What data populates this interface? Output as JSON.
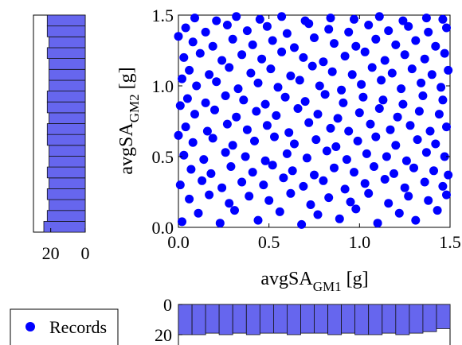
{
  "colors": {
    "points": "#0000ff",
    "bars": "#6666ee",
    "bar_edge": "#111111",
    "axes": "#000000",
    "background": "#ffffff"
  },
  "legend": {
    "label": "Records",
    "marker_icon": "filled-circle"
  },
  "chart_data": [
    {
      "type": "scatter",
      "xlabel": "avgSA",
      "xlabel_sub": "GM1",
      "xlabel_unit": "[g]",
      "ylabel": "avgSA",
      "ylabel_sub": "GM2",
      "ylabel_unit": "[g]",
      "xlim": [
        0,
        1.5
      ],
      "ylim": [
        0,
        1.5
      ],
      "xticks": [
        "0.0",
        "0.5",
        "1.0",
        "1.5"
      ],
      "yticks": [
        "0.0",
        "0.5",
        "1.0",
        "1.5"
      ],
      "grid": false,
      "legend": "bottom-left",
      "series": [
        {
          "name": "Records",
          "points": [
            [
              0.02,
              0.04
            ],
            [
              0.11,
              0.1
            ],
            [
              0.23,
              0.03
            ],
            [
              0.31,
              0.12
            ],
            [
              0.44,
              0.05
            ],
            [
              0.56,
              0.11
            ],
            [
              0.68,
              0.02
            ],
            [
              0.77,
              0.09
            ],
            [
              0.89,
              0.06
            ],
            [
              0.98,
              0.13
            ],
            [
              1.1,
              0.03
            ],
            [
              1.22,
              0.1
            ],
            [
              1.31,
              0.05
            ],
            [
              1.43,
              0.12
            ],
            [
              0.06,
              0.2
            ],
            [
              0.17,
              0.23
            ],
            [
              0.28,
              0.17
            ],
            [
              0.39,
              0.22
            ],
            [
              0.5,
              0.19
            ],
            [
              0.62,
              0.24
            ],
            [
              0.73,
              0.16
            ],
            [
              0.83,
              0.21
            ],
            [
              0.95,
              0.18
            ],
            [
              1.05,
              0.24
            ],
            [
              1.16,
              0.17
            ],
            [
              1.27,
              0.22
            ],
            [
              1.38,
              0.19
            ],
            [
              1.48,
              0.23
            ],
            [
              0.01,
              0.3
            ],
            [
              0.13,
              0.33
            ],
            [
              0.24,
              0.28
            ],
            [
              0.35,
              0.32
            ],
            [
              0.47,
              0.3
            ],
            [
              0.58,
              0.35
            ],
            [
              0.69,
              0.29
            ],
            [
              0.8,
              0.33
            ],
            [
              0.92,
              0.27
            ],
            [
              1.03,
              0.31
            ],
            [
              1.14,
              0.34
            ],
            [
              1.25,
              0.28
            ],
            [
              1.36,
              0.32
            ],
            [
              1.46,
              0.29
            ],
            [
              0.07,
              0.41
            ],
            [
              0.18,
              0.38
            ],
            [
              0.29,
              0.43
            ],
            [
              0.41,
              0.39
            ],
            [
              0.52,
              0.44
            ],
            [
              0.63,
              0.4
            ],
            [
              0.75,
              0.37
            ],
            [
              0.86,
              0.42
            ],
            [
              0.97,
              0.39
            ],
            [
              1.08,
              0.43
            ],
            [
              1.19,
              0.38
            ],
            [
              1.3,
              0.42
            ],
            [
              1.41,
              0.4
            ],
            [
              1.49,
              0.37
            ],
            [
              0.03,
              0.51
            ],
            [
              0.14,
              0.48
            ],
            [
              0.26,
              0.53
            ],
            [
              0.37,
              0.5
            ],
            [
              0.48,
              0.47
            ],
            [
              0.6,
              0.52
            ],
            [
              0.71,
              0.49
            ],
            [
              0.82,
              0.54
            ],
            [
              0.93,
              0.48
            ],
            [
              1.04,
              0.52
            ],
            [
              1.15,
              0.5
            ],
            [
              1.26,
              0.47
            ],
            [
              1.37,
              0.53
            ],
            [
              1.47,
              0.5
            ],
            [
              0.08,
              0.6
            ],
            [
              0.19,
              0.63
            ],
            [
              0.3,
              0.58
            ],
            [
              0.42,
              0.61
            ],
            [
              0.53,
              0.64
            ],
            [
              0.64,
              0.59
            ],
            [
              0.76,
              0.62
            ],
            [
              0.87,
              0.57
            ],
            [
              0.99,
              0.61
            ],
            [
              1.09,
              0.64
            ],
            [
              1.2,
              0.58
            ],
            [
              1.32,
              0.62
            ],
            [
              1.42,
              0.59
            ],
            [
              0.0,
              0.65
            ],
            [
              0.04,
              0.71
            ],
            [
              0.16,
              0.68
            ],
            [
              0.27,
              0.73
            ],
            [
              0.38,
              0.69
            ],
            [
              0.49,
              0.72
            ],
            [
              0.61,
              0.67
            ],
            [
              0.72,
              0.74
            ],
            [
              0.84,
              0.7
            ],
            [
              0.94,
              0.68
            ],
            [
              1.06,
              0.73
            ],
            [
              1.17,
              0.69
            ],
            [
              1.28,
              0.72
            ],
            [
              1.39,
              0.68
            ],
            [
              1.48,
              0.71
            ],
            [
              0.09,
              0.8
            ],
            [
              0.2,
              0.83
            ],
            [
              0.32,
              0.78
            ],
            [
              0.43,
              0.82
            ],
            [
              0.54,
              0.79
            ],
            [
              0.66,
              0.84
            ],
            [
              0.77,
              0.8
            ],
            [
              0.88,
              0.77
            ],
            [
              1.0,
              0.81
            ],
            [
              1.11,
              0.84
            ],
            [
              1.21,
              0.78
            ],
            [
              1.33,
              0.82
            ],
            [
              1.44,
              0.8
            ],
            [
              0.01,
              0.86
            ],
            [
              0.05,
              0.91
            ],
            [
              0.15,
              0.88
            ],
            [
              0.26,
              0.93
            ],
            [
              0.36,
              0.9
            ],
            [
              0.48,
              0.87
            ],
            [
              0.59,
              0.92
            ],
            [
              0.7,
              0.89
            ],
            [
              0.81,
              0.94
            ],
            [
              0.91,
              0.88
            ],
            [
              1.02,
              0.92
            ],
            [
              1.13,
              0.9
            ],
            [
              1.24,
              0.87
            ],
            [
              1.35,
              0.93
            ],
            [
              1.46,
              0.9
            ],
            [
              0.1,
              1.0
            ],
            [
              0.21,
              1.03
            ],
            [
              0.33,
              0.98
            ],
            [
              0.44,
              1.02
            ],
            [
              0.55,
              0.99
            ],
            [
              0.67,
              1.04
            ],
            [
              0.78,
              1.0
            ],
            [
              0.9,
              0.97
            ],
            [
              1.01,
              1.01
            ],
            [
              1.12,
              1.04
            ],
            [
              1.23,
              0.98
            ],
            [
              1.34,
              1.02
            ],
            [
              1.45,
              0.99
            ],
            [
              0.02,
              1.05
            ],
            [
              0.06,
              1.11
            ],
            [
              0.17,
              1.08
            ],
            [
              0.28,
              1.13
            ],
            [
              0.4,
              1.09
            ],
            [
              0.51,
              1.12
            ],
            [
              0.62,
              1.07
            ],
            [
              0.74,
              1.14
            ],
            [
              0.85,
              1.1
            ],
            [
              0.96,
              1.08
            ],
            [
              1.07,
              1.13
            ],
            [
              1.18,
              1.09
            ],
            [
              1.29,
              1.12
            ],
            [
              1.4,
              1.08
            ],
            [
              1.49,
              1.11
            ],
            [
              0.03,
              1.2
            ],
            [
              0.12,
              1.23
            ],
            [
              0.24,
              1.18
            ],
            [
              0.35,
              1.22
            ],
            [
              0.46,
              1.19
            ],
            [
              0.57,
              1.24
            ],
            [
              0.69,
              1.2
            ],
            [
              0.8,
              1.17
            ],
            [
              0.92,
              1.21
            ],
            [
              1.03,
              1.24
            ],
            [
              1.14,
              1.18
            ],
            [
              1.25,
              1.22
            ],
            [
              1.36,
              1.19
            ],
            [
              1.47,
              1.23
            ],
            [
              0.08,
              1.31
            ],
            [
              0.19,
              1.28
            ],
            [
              0.3,
              1.33
            ],
            [
              0.41,
              1.29
            ],
            [
              0.52,
              1.32
            ],
            [
              0.64,
              1.27
            ],
            [
              0.75,
              1.34
            ],
            [
              0.86,
              1.3
            ],
            [
              0.98,
              1.28
            ],
            [
              1.09,
              1.33
            ],
            [
              1.2,
              1.29
            ],
            [
              1.31,
              1.32
            ],
            [
              1.42,
              1.28
            ],
            [
              0.0,
              1.35
            ],
            [
              0.04,
              1.41
            ],
            [
              0.15,
              1.38
            ],
            [
              0.27,
              1.43
            ],
            [
              0.38,
              1.39
            ],
            [
              0.49,
              1.42
            ],
            [
              0.6,
              1.37
            ],
            [
              0.72,
              1.44
            ],
            [
              0.83,
              1.4
            ],
            [
              0.94,
              1.38
            ],
            [
              1.05,
              1.43
            ],
            [
              1.16,
              1.39
            ],
            [
              1.27,
              1.42
            ],
            [
              1.38,
              1.38
            ],
            [
              1.48,
              1.41
            ],
            [
              0.09,
              1.48
            ],
            [
              0.21,
              1.46
            ],
            [
              0.32,
              1.49
            ],
            [
              0.45,
              1.47
            ],
            [
              0.57,
              1.49
            ],
            [
              0.7,
              1.46
            ],
            [
              0.84,
              1.48
            ],
            [
              0.97,
              1.47
            ],
            [
              1.11,
              1.49
            ],
            [
              1.24,
              1.46
            ],
            [
              1.37,
              1.48
            ],
            [
              1.46,
              1.47
            ]
          ]
        }
      ]
    },
    {
      "type": "bar",
      "orientation": "horizontal",
      "axis_direction": "reversed",
      "description": "marginal histogram of avgSA_GM2",
      "xlim": [
        0,
        30
      ],
      "xticks": [
        "20",
        "0"
      ],
      "xtick_values": [
        20,
        0
      ],
      "bin_range": [
        0,
        1.5
      ],
      "values": [
        24,
        22,
        21,
        22,
        21,
        22,
        21,
        21,
        22,
        22,
        21,
        22,
        22,
        21,
        21,
        21,
        22,
        21,
        22,
        22
      ]
    },
    {
      "type": "bar",
      "orientation": "vertical",
      "axis_direction": "reversed",
      "description": "marginal histogram of avgSA_GM1",
      "ylim": [
        0,
        20
      ],
      "yticks": [
        "0",
        "20"
      ],
      "ytick_values": [
        0,
        20
      ],
      "bin_range": [
        0,
        1.5
      ],
      "values": [
        20,
        20,
        19,
        20,
        19,
        20,
        19,
        19,
        20,
        19,
        19,
        20,
        19,
        20,
        20,
        19,
        20,
        19,
        18,
        16
      ]
    }
  ]
}
